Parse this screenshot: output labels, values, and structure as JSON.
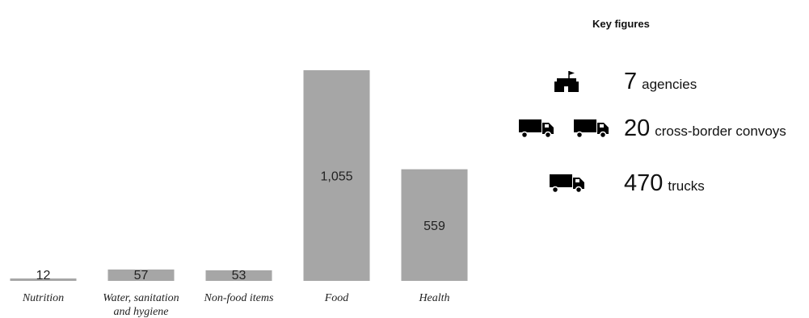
{
  "chart_data": {
    "type": "bar",
    "categories": [
      "Nutrition",
      "Water, sanitation and hygiene",
      "Non-food items",
      "Food",
      "Health"
    ],
    "category_labels": [
      "Nutrition",
      "Water, sanitation\nand hygiene",
      "Non-food items",
      "Food",
      "Health"
    ],
    "values": [
      12,
      57,
      53,
      1055,
      559
    ],
    "value_labels": [
      "12",
      "57",
      "53",
      "1,055",
      "559"
    ],
    "bar_color": "#a6a6a6",
    "ylim": [
      0,
      1100
    ]
  },
  "key_figures": {
    "title": "Key figures",
    "items": [
      {
        "number": "7",
        "unit": "agencies",
        "icon": "headquarters-icon",
        "icon_count": 1
      },
      {
        "number": "20",
        "unit": "cross-border convoys",
        "icon": "truck-icon",
        "icon_count": 2
      },
      {
        "number": "470",
        "unit": "trucks",
        "icon": "truck-icon",
        "icon_count": 1
      }
    ]
  }
}
